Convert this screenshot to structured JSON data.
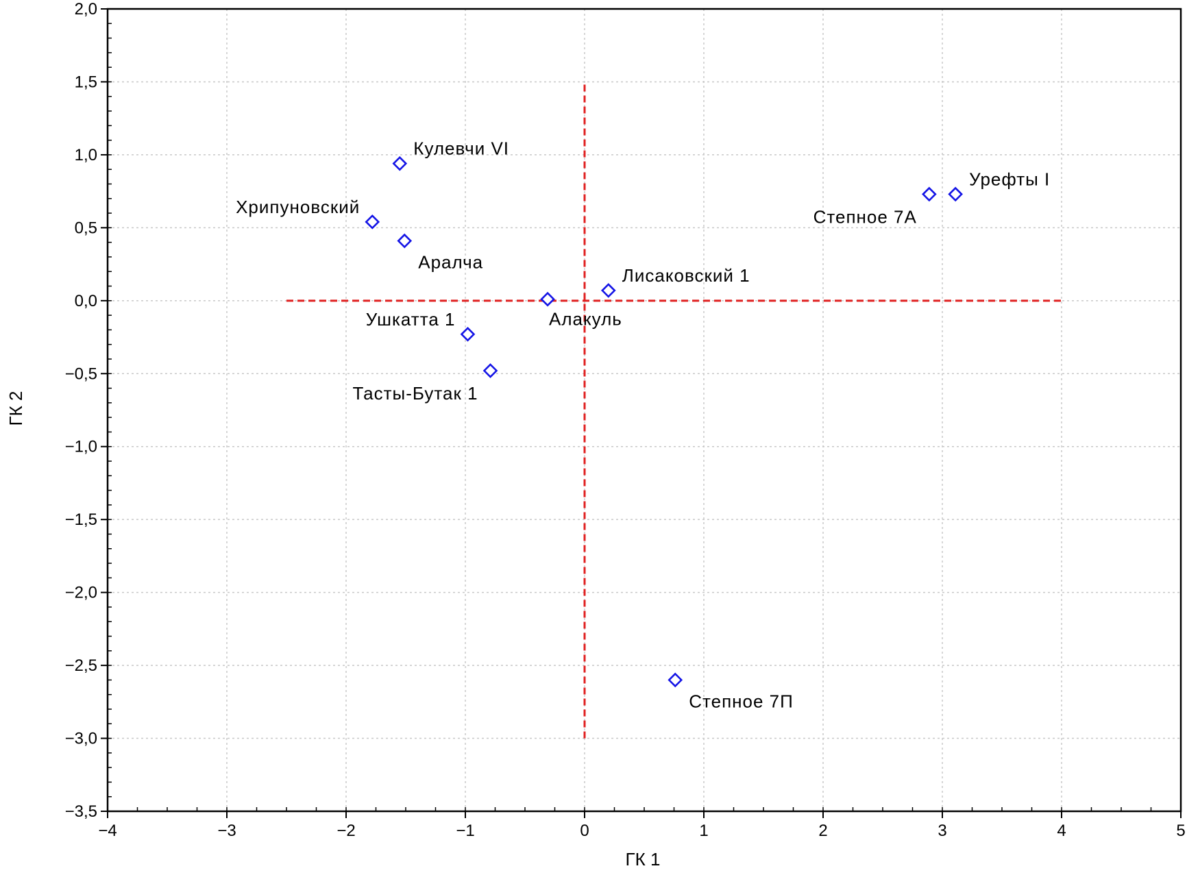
{
  "chart_data": {
    "type": "scatter",
    "title": "",
    "xlabel": "ГК 1",
    "ylabel": "ГК 2",
    "xlim": [
      -4,
      5
    ],
    "ylim": [
      -3.5,
      2.0
    ],
    "grid": true,
    "x_ticks": [
      {
        "value": -4,
        "label": "−4"
      },
      {
        "value": -3,
        "label": "−3"
      },
      {
        "value": -2,
        "label": "−2"
      },
      {
        "value": -1,
        "label": "−1"
      },
      {
        "value": 0,
        "label": "0"
      },
      {
        "value": 1,
        "label": "1"
      },
      {
        "value": 2,
        "label": "2"
      },
      {
        "value": 3,
        "label": "3"
      },
      {
        "value": 4,
        "label": "4"
      },
      {
        "value": 5,
        "label": "5"
      }
    ],
    "y_ticks": [
      {
        "value": 2.0,
        "label": "2,0"
      },
      {
        "value": 1.5,
        "label": "1,5"
      },
      {
        "value": 1.0,
        "label": "1,0"
      },
      {
        "value": 0.5,
        "label": "0,5"
      },
      {
        "value": 0.0,
        "label": "0,0"
      },
      {
        "value": -0.5,
        "label": "−0,5"
      },
      {
        "value": -1.0,
        "label": "−1,0"
      },
      {
        "value": -1.5,
        "label": "−1,5"
      },
      {
        "value": -2.0,
        "label": "−2,0"
      },
      {
        "value": -2.5,
        "label": "−2,5"
      },
      {
        "value": -3.0,
        "label": "−3,0"
      },
      {
        "value": -3.5,
        "label": "−3,5"
      }
    ],
    "points": [
      {
        "label": "Кулевчи VI",
        "x": -1.55,
        "y": 0.94,
        "label_pos": "above-right"
      },
      {
        "label": "Хрипуновский",
        "x": -1.78,
        "y": 0.54,
        "label_pos": "above-left"
      },
      {
        "label": "Аралча",
        "x": -1.51,
        "y": 0.41,
        "label_pos": "below-right"
      },
      {
        "label": "Алакуль",
        "x": -0.31,
        "y": 0.01,
        "label_pos": "below"
      },
      {
        "label": "Лисаковский 1",
        "x": 0.2,
        "y": 0.07,
        "label_pos": "above-right"
      },
      {
        "label": "Ушкатта 1",
        "x": -0.98,
        "y": -0.23,
        "label_pos": "above-left"
      },
      {
        "label": "Тасты-Бутак 1",
        "x": -0.79,
        "y": -0.48,
        "label_pos": "below-left"
      },
      {
        "label": "Степное 7А",
        "x": 2.89,
        "y": 0.73,
        "label_pos": "below-left"
      },
      {
        "label": "Урефты I",
        "x": 3.11,
        "y": 0.73,
        "label_pos": "above-right"
      },
      {
        "label": "Степное 7П",
        "x": 0.76,
        "y": -2.6,
        "label_pos": "below-right"
      }
    ],
    "reference_lines": {
      "horizontal": {
        "y": 0,
        "x_from": -2.5,
        "x_to": 4
      },
      "vertical": {
        "x": 0,
        "y_from": -3.0,
        "y_to": 1.5
      },
      "color": "#e02020",
      "style": "dashed"
    },
    "marker": {
      "shape": "diamond",
      "color": "#1414e6"
    }
  }
}
